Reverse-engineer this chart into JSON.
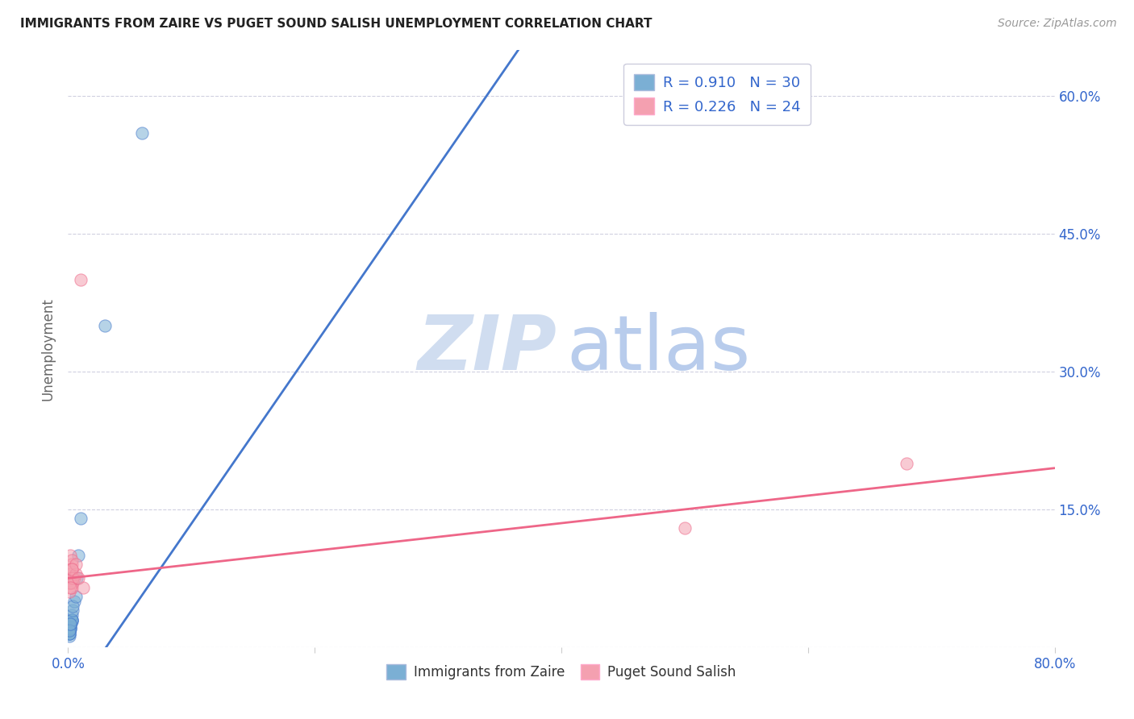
{
  "title": "IMMIGRANTS FROM ZAIRE VS PUGET SOUND SALISH UNEMPLOYMENT CORRELATION CHART",
  "source": "Source: ZipAtlas.com",
  "ylabel": "Unemployment",
  "xlim": [
    0.0,
    0.8
  ],
  "ylim": [
    0.0,
    0.65
  ],
  "xticks": [
    0.0,
    0.2,
    0.4,
    0.6,
    0.8
  ],
  "xtick_labels": [
    "0.0%",
    "",
    "",
    "",
    "80.0%"
  ],
  "ytick_positions": [
    0.0,
    0.15,
    0.3,
    0.45,
    0.6
  ],
  "ytick_labels_right": [
    "",
    "15.0%",
    "30.0%",
    "45.0%",
    "60.0%"
  ],
  "grid_color": "#d0d0e0",
  "background_color": "#ffffff",
  "blue_scatter_color": "#7bafd4",
  "pink_scatter_color": "#f4a0b0",
  "blue_line_color": "#4477cc",
  "pink_line_color": "#ee6688",
  "legend_label1": "Immigrants from Zaire",
  "legend_label2": "Puget Sound Salish",
  "watermark_zip_color": "#d0ddf0",
  "watermark_atlas_color": "#b8ccec",
  "blue_scatter_x": [
    0.001,
    0.002,
    0.001,
    0.003,
    0.002,
    0.001,
    0.002,
    0.003,
    0.001,
    0.002,
    0.003,
    0.001,
    0.002,
    0.001,
    0.003,
    0.002,
    0.001,
    0.002,
    0.003,
    0.001,
    0.004,
    0.005,
    0.002,
    0.004,
    0.006,
    0.007,
    0.008,
    0.01,
    0.03,
    0.06
  ],
  "blue_scatter_y": [
    0.02,
    0.025,
    0.015,
    0.03,
    0.02,
    0.018,
    0.022,
    0.028,
    0.012,
    0.025,
    0.03,
    0.018,
    0.022,
    0.015,
    0.035,
    0.02,
    0.015,
    0.025,
    0.03,
    0.018,
    0.04,
    0.05,
    0.025,
    0.045,
    0.055,
    0.075,
    0.1,
    0.14,
    0.35,
    0.56
  ],
  "pink_scatter_x": [
    0.001,
    0.002,
    0.001,
    0.002,
    0.003,
    0.002,
    0.001,
    0.003,
    0.002,
    0.003,
    0.004,
    0.005,
    0.006,
    0.003,
    0.002,
    0.004,
    0.006,
    0.012,
    0.003,
    0.008,
    0.01,
    0.5,
    0.68,
    0.002
  ],
  "pink_scatter_y": [
    0.085,
    0.1,
    0.07,
    0.075,
    0.09,
    0.08,
    0.06,
    0.095,
    0.075,
    0.085,
    0.07,
    0.075,
    0.08,
    0.065,
    0.07,
    0.075,
    0.09,
    0.065,
    0.085,
    0.075,
    0.4,
    0.13,
    0.2,
    0.065
  ],
  "blue_line_x": [
    -0.005,
    0.37
  ],
  "blue_line_y": [
    -0.07,
    0.66
  ],
  "pink_line_x": [
    0.0,
    0.8
  ],
  "pink_line_y": [
    0.075,
    0.195
  ]
}
